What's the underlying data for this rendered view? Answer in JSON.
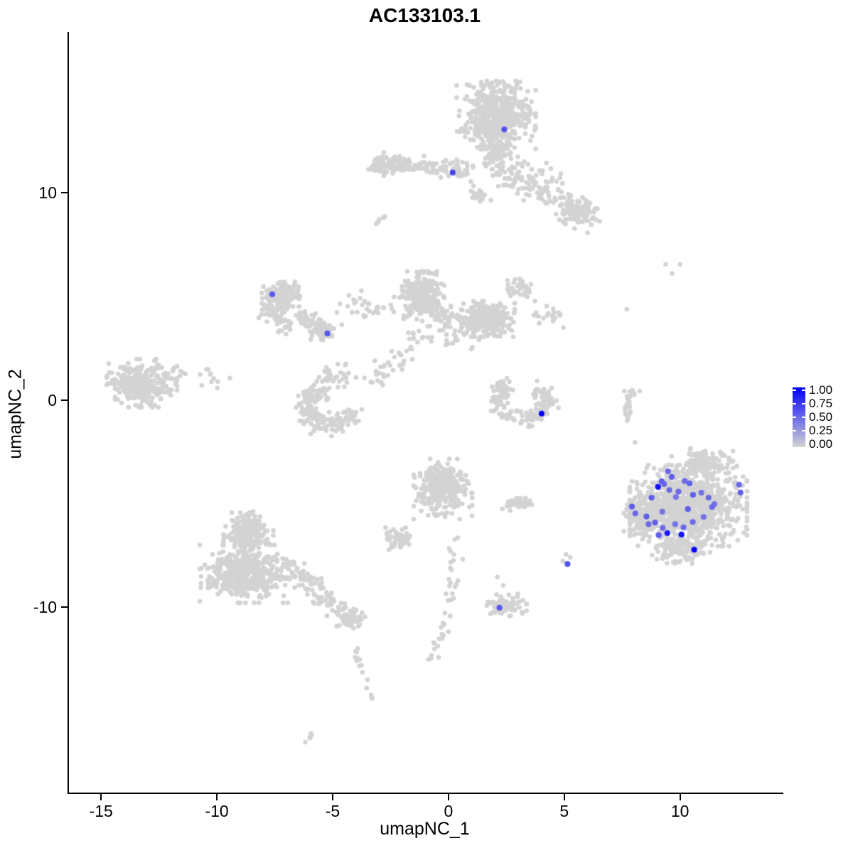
{
  "title": "AC133103.1",
  "axes": {
    "x_label": "umapNC_1",
    "y_label": "umapNC_2"
  },
  "legend": {
    "labels": [
      "1.00",
      "0.75",
      "0.50",
      "0.25",
      "0.00"
    ],
    "color_high": "#0000FF",
    "color_low": "#D3D3D3"
  },
  "chart_data": {
    "type": "scatter",
    "title": "AC133103.1",
    "xlabel": "umapNC_1",
    "ylabel": "umapNC_2",
    "xlim": [
      -16.45,
      14.4
    ],
    "ylim": [
      -18.95,
      17.75
    ],
    "x_ticks": [
      -15,
      -10,
      -5,
      0,
      5,
      10
    ],
    "y_ticks": [
      -10,
      0,
      10
    ],
    "grid": false,
    "legend_position": "right",
    "background_point_color": "#D3D3D3",
    "gradient": [
      "#D3D3D3",
      "#0000FF"
    ],
    "colorbar": {
      "min": 0.0,
      "max": 1.0,
      "ticks": [
        1.0,
        0.75,
        0.5,
        0.25,
        0.0
      ]
    },
    "clusters": [
      {
        "name": "top-main",
        "type": "gauss",
        "n": 520,
        "cx": 2.0,
        "cy": 13.75,
        "rx": 1.35,
        "ry": 1.3
      },
      {
        "name": "top-neck",
        "type": "gauss",
        "n": 70,
        "cx": 1.95,
        "cy": 12.0,
        "rx": 0.55,
        "ry": 0.6
      },
      {
        "name": "top-left-arm",
        "type": "line",
        "n": 120,
        "x1": -3.0,
        "y1": 11.45,
        "x2": 0.8,
        "y2": 11.1,
        "jitter": 0.22
      },
      {
        "name": "top-left-arm-blob",
        "type": "gauss",
        "n": 70,
        "cx": -2.75,
        "cy": 11.3,
        "rx": 0.6,
        "ry": 0.38
      },
      {
        "name": "top-right-arm",
        "type": "line",
        "n": 150,
        "x1": 2.4,
        "y1": 11.3,
        "x2": 6.2,
        "y2": 8.7,
        "jitter": 0.45
      },
      {
        "name": "top-right-arm-blob",
        "type": "gauss",
        "n": 55,
        "cx": 5.6,
        "cy": 9.1,
        "rx": 0.55,
        "ry": 0.4
      },
      {
        "name": "top-tail",
        "type": "line",
        "n": 28,
        "x1": 2.0,
        "y1": 12.2,
        "x2": 2.4,
        "y2": 10.2,
        "jitter": 0.18
      },
      {
        "name": "top-below-scatter",
        "type": "gauss",
        "n": 20,
        "cx": 1.1,
        "cy": 9.9,
        "rx": 0.55,
        "ry": 0.5
      },
      {
        "name": "top-small-arc",
        "type": "line",
        "n": 8,
        "x1": -3.15,
        "y1": 8.5,
        "x2": -2.8,
        "y2": 8.85,
        "jitter": 0.06
      },
      {
        "name": "midleft-main",
        "type": "gauss",
        "n": 120,
        "cx": -7.3,
        "cy": 5.0,
        "rx": 0.65,
        "ry": 0.55
      },
      {
        "name": "midleft-ring",
        "type": "arc",
        "n": 90,
        "cx": -6.9,
        "cy": 4.4,
        "rx": 0.85,
        "ry": 0.8,
        "a1": 80,
        "a2": 270,
        "jitter": 0.22
      },
      {
        "name": "midleft-tail",
        "type": "line",
        "n": 55,
        "x1": -6.4,
        "y1": 4.1,
        "x2": -5.4,
        "y2": 3.3,
        "jitter": 0.22
      },
      {
        "name": "midleft-tail-blob",
        "type": "gauss",
        "n": 45,
        "cx": -5.5,
        "cy": 3.25,
        "rx": 0.45,
        "ry": 0.35
      },
      {
        "name": "mid-bridge",
        "type": "line",
        "n": 35,
        "x1": -4.9,
        "y1": 4.3,
        "x2": -2.4,
        "y2": 4.7,
        "jitter": 0.3
      },
      {
        "name": "center-left-lobe",
        "type": "gauss",
        "n": 270,
        "cx": -1.15,
        "cy": 5.0,
        "rx": 0.72,
        "ry": 0.95
      },
      {
        "name": "center-right-lobe",
        "type": "gauss",
        "n": 240,
        "cx": 1.6,
        "cy": 3.9,
        "rx": 0.95,
        "ry": 0.68
      },
      {
        "name": "center-bridge",
        "type": "line",
        "n": 60,
        "x1": -0.6,
        "y1": 4.1,
        "x2": 0.9,
        "y2": 3.8,
        "jitter": 0.32
      },
      {
        "name": "center-bottom-fringe",
        "type": "line",
        "n": 30,
        "x1": -1.9,
        "y1": 3.0,
        "x2": 1.4,
        "y2": 2.9,
        "jitter": 0.28
      },
      {
        "name": "center-upper-scatter",
        "type": "gauss",
        "n": 35,
        "cx": 2.9,
        "cy": 5.3,
        "rx": 0.7,
        "ry": 0.55
      },
      {
        "name": "center-right-scatter",
        "type": "gauss",
        "n": 22,
        "cx": 4.4,
        "cy": 4.1,
        "rx": 0.65,
        "ry": 0.5
      },
      {
        "name": "center-downtail",
        "type": "line",
        "n": 40,
        "x1": -1.6,
        "y1": 2.6,
        "x2": -3.4,
        "y2": 1.0,
        "jitter": 0.3
      },
      {
        "name": "c-cluster",
        "type": "arc",
        "n": 170,
        "cx": -5.1,
        "cy": -0.3,
        "rx": 1.1,
        "ry": 0.85,
        "a1": 100,
        "a2": 330,
        "jitter": 0.26
      },
      {
        "name": "c-cluster-top-scatter",
        "type": "gauss",
        "n": 28,
        "cx": -5.0,
        "cy": 1.2,
        "rx": 0.75,
        "ry": 0.45
      },
      {
        "name": "farleft",
        "type": "gauss",
        "n": 300,
        "cx": -13.3,
        "cy": 0.8,
        "rx": 1.2,
        "ry": 0.92
      },
      {
        "name": "farleft-trail",
        "type": "line",
        "n": 14,
        "x1": -11.9,
        "y1": 1.2,
        "x2": -9.7,
        "y2": 1.3,
        "jitter": 0.35
      },
      {
        "name": "hook",
        "type": "arc",
        "n": 150,
        "cx": 3.1,
        "cy": -0.15,
        "rx": 1.15,
        "ry": 0.7,
        "a1": 120,
        "a2": 420,
        "jitter": 0.2
      },
      {
        "name": "hook-top-scatter",
        "type": "gauss",
        "n": 22,
        "cx": 2.2,
        "cy": 0.55,
        "rx": 0.4,
        "ry": 0.45
      },
      {
        "name": "right-chain",
        "type": "line",
        "n": 30,
        "x1": 7.78,
        "y1": 0.7,
        "x2": 7.62,
        "y2": -1.0,
        "jitter": 0.1
      },
      {
        "name": "centerbottom-main",
        "type": "gauss",
        "n": 290,
        "cx": -0.3,
        "cy": -4.3,
        "rx": 1.0,
        "ry": 1.15
      },
      {
        "name": "centerbottom-left-blob",
        "type": "gauss",
        "n": 55,
        "cx": -2.3,
        "cy": -6.7,
        "rx": 0.5,
        "ry": 0.42
      },
      {
        "name": "centerbottom-right-blob",
        "type": "gauss",
        "n": 42,
        "cx": 2.9,
        "cy": -4.95,
        "rx": 0.5,
        "ry": 0.33
      },
      {
        "name": "centerbottom-tail-1",
        "type": "line",
        "n": 22,
        "x1": 0.3,
        "y1": -6.4,
        "x2": 0.0,
        "y2": -10.0,
        "jitter": 0.15
      },
      {
        "name": "centerbottom-tail-2",
        "type": "line",
        "n": 18,
        "x1": 0.0,
        "y1": -10.1,
        "x2": -0.75,
        "y2": -12.6,
        "jitter": 0.12
      },
      {
        "name": "bottom-small",
        "type": "gauss",
        "n": 85,
        "cx": 2.3,
        "cy": -9.9,
        "rx": 0.8,
        "ry": 0.42
      },
      {
        "name": "bottomleft-top",
        "type": "gauss",
        "n": 190,
        "cx": -8.7,
        "cy": -6.4,
        "rx": 0.85,
        "ry": 0.8
      },
      {
        "name": "bottomleft-main",
        "type": "gauss",
        "n": 430,
        "cx": -8.9,
        "cy": -8.4,
        "rx": 1.5,
        "ry": 1.1
      },
      {
        "name": "bottomleft-arm",
        "type": "line",
        "n": 110,
        "x1": -7.2,
        "y1": -7.9,
        "x2": -4.7,
        "y2": -10.2,
        "jitter": 0.3
      },
      {
        "name": "bottomleft-arm-blob",
        "type": "gauss",
        "n": 65,
        "cx": -4.3,
        "cy": -10.6,
        "rx": 0.5,
        "ry": 0.42
      },
      {
        "name": "bottomleft-chain",
        "type": "line",
        "n": 15,
        "x1": -4.1,
        "y1": -11.7,
        "x2": -3.25,
        "y2": -15.5,
        "jitter": 0.1
      },
      {
        "name": "bottom-dash",
        "type": "line",
        "n": 6,
        "x1": -6.2,
        "y1": -16.6,
        "x2": -5.95,
        "y2": -16.1,
        "jitter": 0.05
      },
      {
        "name": "right-main",
        "type": "gauss",
        "n": 900,
        "cx": 10.3,
        "cy": -5.1,
        "rx": 2.0,
        "ry": 1.55
      },
      {
        "name": "right-top-bump",
        "type": "gauss",
        "n": 130,
        "cx": 10.9,
        "cy": -3.1,
        "rx": 1.05,
        "ry": 0.6
      },
      {
        "name": "right-left-bump",
        "type": "gauss",
        "n": 140,
        "cx": 8.4,
        "cy": -5.6,
        "rx": 0.7,
        "ry": 0.9
      },
      {
        "name": "right-bottom",
        "type": "gauss",
        "n": 120,
        "cx": 10.0,
        "cy": -7.2,
        "rx": 1.0,
        "ry": 0.55
      },
      {
        "name": "isolated-singles",
        "type": "points",
        "pts": [
          [
            9.32,
            6.53
          ],
          [
            9.94,
            6.53
          ],
          [
            9.6,
            6.1
          ],
          [
            7.64,
            4.37
          ],
          [
            8.2,
            0.42
          ],
          [
            8.0,
            -2.05
          ],
          [
            5.02,
            -7.45
          ],
          [
            5.2,
            -7.6
          ],
          [
            4.88,
            -7.78
          ],
          [
            2.05,
            -8.55
          ],
          [
            2.3,
            -8.95
          ],
          [
            -2.0,
            3.9
          ],
          [
            -9.5,
            1.05
          ]
        ]
      }
    ],
    "expression_points": [
      [
        2.35,
        13.05,
        0.62
      ],
      [
        0.12,
        10.97,
        0.68
      ],
      [
        -7.67,
        5.09,
        0.58
      ],
      [
        -5.29,
        3.2,
        0.58
      ],
      [
        3.96,
        -0.66,
        1.0
      ],
      [
        5.08,
        -7.92,
        0.6
      ],
      [
        2.14,
        -10.03,
        0.58
      ],
      [
        9.42,
        -3.45,
        0.5
      ],
      [
        9.14,
        -3.93,
        0.55
      ],
      [
        9.25,
        -4.06,
        0.5
      ],
      [
        8.99,
        -4.2,
        0.92
      ],
      [
        9.58,
        -3.72,
        0.55
      ],
      [
        10.14,
        -3.92,
        0.5
      ],
      [
        10.35,
        -4.03,
        0.55
      ],
      [
        9.48,
        -4.35,
        0.5
      ],
      [
        8.71,
        -4.72,
        0.55
      ],
      [
        9.76,
        -4.69,
        0.45
      ],
      [
        9.87,
        -4.43,
        0.5
      ],
      [
        10.5,
        -4.58,
        0.55
      ],
      [
        10.86,
        -4.48,
        0.45
      ],
      [
        11.17,
        -4.72,
        0.5
      ],
      [
        11.42,
        -5.03,
        0.45
      ],
      [
        12.49,
        -4.09,
        0.5
      ],
      [
        12.55,
        -4.47,
        0.55
      ],
      [
        7.86,
        -5.15,
        0.55
      ],
      [
        8.01,
        -5.48,
        0.5
      ],
      [
        8.49,
        -5.63,
        0.55
      ],
      [
        8.58,
        -6.0,
        0.5
      ],
      [
        8.86,
        -5.92,
        0.55
      ],
      [
        9.17,
        -5.4,
        0.45
      ],
      [
        9.19,
        -6.18,
        0.5
      ],
      [
        9.73,
        -6.0,
        0.45
      ],
      [
        10.09,
        -6.15,
        0.5
      ],
      [
        10.28,
        -5.27,
        0.55
      ],
      [
        10.49,
        -5.89,
        0.5
      ],
      [
        10.96,
        -5.65,
        0.45
      ],
      [
        11.32,
        -5.17,
        0.5
      ],
      [
        9.39,
        -6.43,
        0.88
      ],
      [
        10.0,
        -6.5,
        0.92
      ],
      [
        10.55,
        -7.23,
        0.98
      ],
      [
        9.02,
        -6.53,
        0.55
      ]
    ]
  }
}
